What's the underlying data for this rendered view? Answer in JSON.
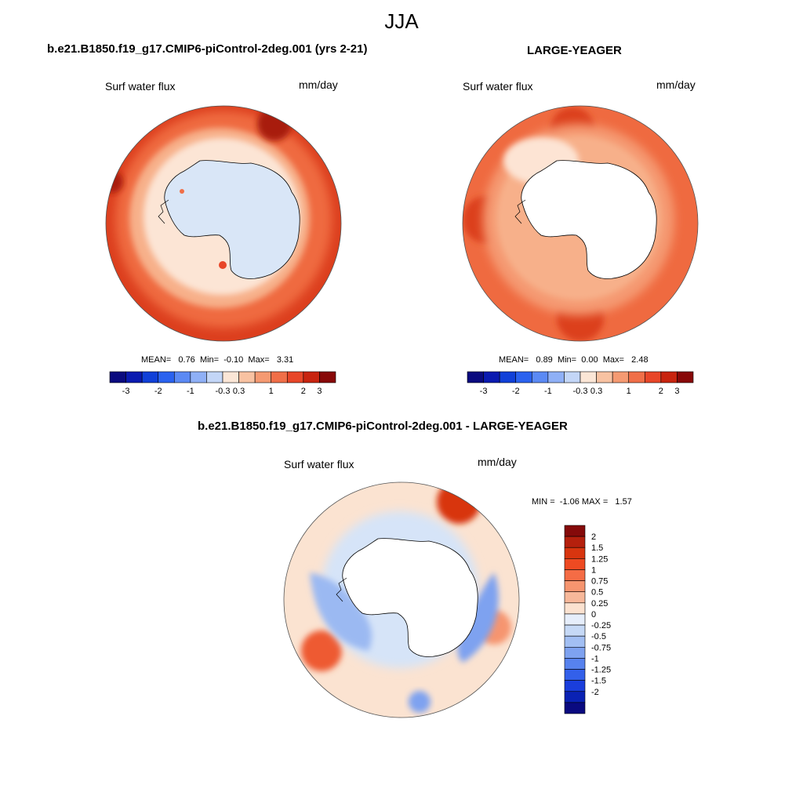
{
  "page_title": "JJA",
  "panels": [
    {
      "title": "b.e21.B1850.f19_g17.CMIP6-piControl-2deg.001 (yrs 2-21)",
      "left_label": "Surf water flux",
      "units": "mm/day",
      "stats": {
        "mean_label": "MEAN=",
        "mean": "0.76",
        "min_label": "Min=",
        "min": "-0.10",
        "max_label": "Max=",
        "max": "3.31"
      }
    },
    {
      "title": "LARGE-YEAGER",
      "left_label": "Surf water flux",
      "units": "mm/day",
      "stats": {
        "mean_label": "MEAN=",
        "mean": "0.89",
        "min_label": "Min=",
        "min": "0.00",
        "max_label": "Max=",
        "max": "2.48"
      }
    },
    {
      "title": "b.e21.B1850.f19_g17.CMIP6-piControl-2deg.001 - LARGE-YEAGER",
      "left_label": "Surf water flux",
      "units": "mm/day",
      "stats": {
        "min_label": "MIN =",
        "min": "-1.06",
        "max_label": "MAX =",
        "max": "1.57"
      }
    }
  ],
  "colorbar_horizontal": {
    "colors": [
      "#0a0a7f",
      "#0a1ab0",
      "#1040d8",
      "#2a62ef",
      "#5b8af4",
      "#8fb0f6",
      "#c3d6f7",
      "#fbe6d6",
      "#f8c2a2",
      "#f59a72",
      "#f06f48",
      "#e84628",
      "#c8240f",
      "#880808"
    ],
    "tick_labels": [
      "-3",
      "-2",
      "-1",
      "-0.3",
      "0.3",
      "1",
      "2",
      "3"
    ],
    "tick_positions": [
      1,
      3,
      5,
      7,
      8,
      10,
      12,
      13
    ]
  },
  "colorbar_vertical": {
    "colors": [
      "#850a0a",
      "#b5200d",
      "#d8350f",
      "#ee4a22",
      "#f56c45",
      "#f6956f",
      "#f7b89a",
      "#fbe2d0",
      "#e6eefb",
      "#c6d9f6",
      "#a2bff3",
      "#7ea2f0",
      "#5782ee",
      "#3360ea",
      "#1a3edc",
      "#0a22b4",
      "#0a0a80"
    ],
    "tick_labels": [
      "2",
      "1.5",
      "1.25",
      "1",
      "0.75",
      "0.5",
      "0.25",
      "0",
      "-0.25",
      "-0.5",
      "-0.75",
      "-1",
      "-1.25",
      "-1.5",
      "-2"
    ]
  },
  "map_colors": {
    "model_outer": "#dc3f1e",
    "model_mid": "#ef6a40",
    "model_ring": "#f7b08a",
    "model_inner": "#fce5d5",
    "model_ice": "#d9e6f7",
    "obs_outer": "#ef6a40",
    "obs_mid": "#f59a72",
    "obs_inner": "#fde4d4",
    "land": "#ffffff",
    "diff_base": "#fbe3d1",
    "diff_blue": "#9bb9f2",
    "diff_lightblue": "#d6e4f8",
    "diff_red": "#ee5a32"
  }
}
